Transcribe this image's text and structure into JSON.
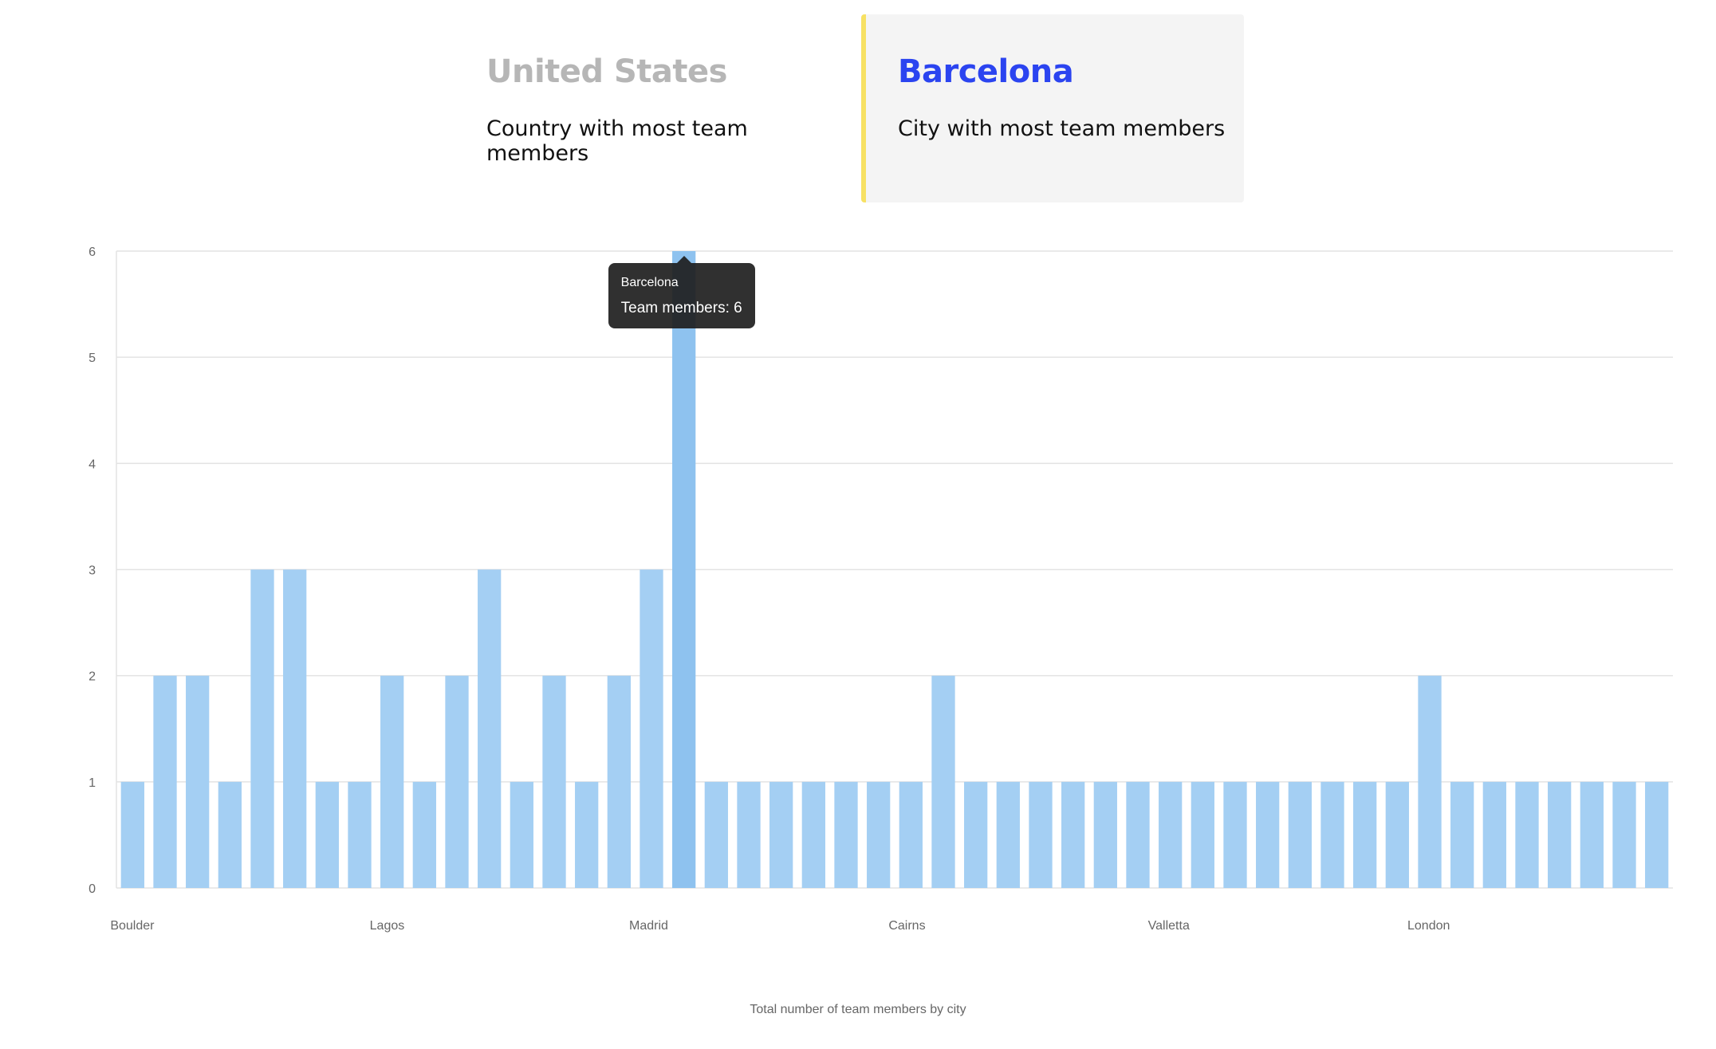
{
  "stats": [
    {
      "value": "United States",
      "label": "Country with most team members",
      "color": "#b6b6b6"
    },
    {
      "value": "Barcelona",
      "label": "City with most team members",
      "color": "#2b44f0"
    }
  ],
  "tooltip": {
    "title": "Barcelona",
    "body": "Team members: 6"
  },
  "colors": {
    "bar": "#a4cff3",
    "bar_active": "#8ec2ef",
    "grid": "#e3e3e3",
    "accent": "#f7e163"
  },
  "chart_data": {
    "type": "bar",
    "title": "Total number of team members by city",
    "xlabel": "",
    "ylabel": "",
    "ylim": [
      0,
      6
    ],
    "yticks": [
      0,
      1,
      2,
      3,
      4,
      5,
      6
    ],
    "grid": true,
    "categories": [
      "Boulder",
      "",
      "",
      "",
      "",
      "",
      "",
      "",
      "Lagos",
      "",
      "",
      "",
      "",
      "",
      "",
      "",
      "Madrid",
      "",
      "",
      "",
      "",
      "",
      "",
      "",
      "Cairns",
      "",
      "",
      "",
      "",
      "",
      "",
      "",
      "Valletta",
      "",
      "",
      "",
      "",
      "",
      "",
      "",
      "London",
      "",
      "",
      "",
      "",
      "",
      "",
      ""
    ],
    "values": [
      1,
      2,
      2,
      1,
      3,
      3,
      1,
      1,
      2,
      1,
      2,
      3,
      1,
      2,
      1,
      2,
      3,
      6,
      1,
      1,
      1,
      1,
      1,
      1,
      1,
      2,
      1,
      1,
      1,
      1,
      1,
      1,
      1,
      1,
      1,
      1,
      1,
      1,
      1,
      1,
      2,
      1,
      1,
      1,
      1,
      1,
      1,
      1
    ],
    "visible_tick_labels": [
      "Boulder",
      "Lagos",
      "Madrid",
      "Cairns",
      "Valletta",
      "London"
    ],
    "highlighted_index": 17
  }
}
